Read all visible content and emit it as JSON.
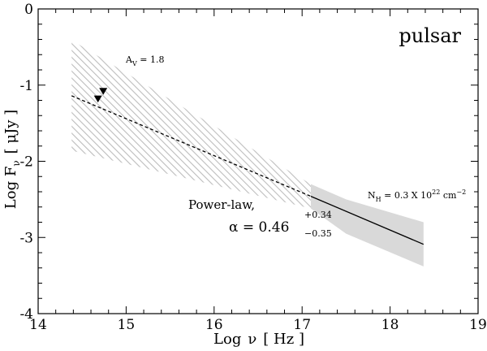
{
  "chart_data": {
    "type": "line",
    "title": "",
    "panel_label": "pulsar",
    "xlabel": {
      "main": "Log",
      "symbol": "ν",
      "unit": "[ Hz ]"
    },
    "ylabel": {
      "main": "Log F",
      "sub": "ν",
      "unit": "[ μJy ]"
    },
    "xlim": [
      14,
      19
    ],
    "ylim": [
      -4,
      0
    ],
    "x_ticks": [
      "14",
      "15",
      "16",
      "17",
      "18",
      "19"
    ],
    "y_ticks": [
      "0",
      "-1",
      "-2",
      "-3",
      "-4"
    ],
    "grid": false,
    "powerlaw_extrapolation": {
      "style": "dashed",
      "x": [
        14.38,
        17.1
      ],
      "y": [
        -1.14,
        -2.46
      ]
    },
    "powerlaw_fit": {
      "style": "solid",
      "x": [
        17.1,
        18.38
      ],
      "y": [
        -2.46,
        -3.09
      ]
    },
    "optical_uncertainty_band": {
      "style": "hatched",
      "x": [
        14.38,
        17.1
      ],
      "upper": [
        -0.41,
        -2.3
      ],
      "lower": [
        -1.86,
        -2.62
      ]
    },
    "xray_uncertainty_band": {
      "style": "filled",
      "x": [
        17.1,
        17.5,
        18.38
      ],
      "upper": [
        -2.3,
        -2.5,
        -2.8
      ],
      "lower": [
        -2.62,
        -2.95,
        -3.38
      ]
    },
    "upper_limits": [
      {
        "x": 14.68,
        "y": -1.18
      },
      {
        "x": 14.74,
        "y": -1.08
      }
    ],
    "annotations": {
      "av": {
        "main": "A",
        "sub": "V",
        "rest": " = 1.8"
      },
      "nh": {
        "main": "N",
        "sub": "H",
        "rest": " = 0.3 X 10",
        "sup": "22",
        "unit": " cm",
        "unit_sup": "−2"
      },
      "powerlaw_label": "Power-law,",
      "alpha": {
        "main": "α = 0.46",
        "sup": "+0.34",
        "sub": "−0.35"
      }
    },
    "colors": {
      "band_fill": "#d9d9d9",
      "hatch": "#bdbdbd",
      "line": "#000000",
      "axis": "#000000"
    }
  }
}
